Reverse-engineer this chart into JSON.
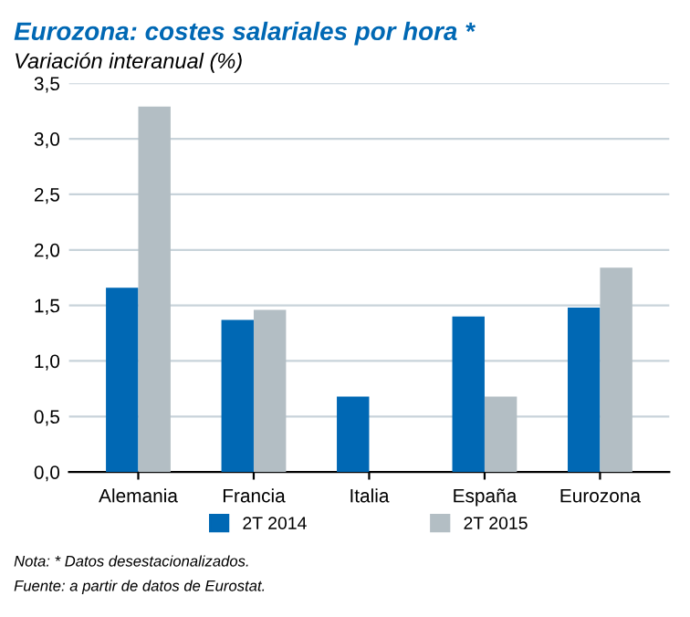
{
  "chart_data": {
    "type": "bar",
    "title": "Eurozona: costes salariales por hora *",
    "subtitle": "Variación interanual (%)",
    "categories": [
      "Alemania",
      "Francia",
      "Italia",
      "España",
      "Eurozona"
    ],
    "series": [
      {
        "name": "2T 2014",
        "color": "#0068b4",
        "values": [
          1.66,
          1.37,
          0.68,
          1.4,
          1.48
        ]
      },
      {
        "name": "2T 2015",
        "color": "#b3bec4",
        "values": [
          3.29,
          1.46,
          null,
          0.68,
          1.84
        ]
      }
    ],
    "ylim": [
      0,
      3.5
    ],
    "yticks": [
      {
        "value": 0,
        "label": "0,0"
      },
      {
        "value": 0.5,
        "label": "0,5"
      },
      {
        "value": 1,
        "label": "1,0"
      },
      {
        "value": 1.5,
        "label": "1,5"
      },
      {
        "value": 2,
        "label": "2,0"
      },
      {
        "value": 2.5,
        "label": "2,5"
      },
      {
        "value": 3,
        "label": "3,0"
      },
      {
        "value": 3.5,
        "label": "3,5"
      }
    ],
    "grid": "y",
    "legend": "bottom",
    "annotations": [
      "Nota: * Datos desestacionalizados.",
      "Fuente: a partir de datos de Eurostat."
    ]
  }
}
